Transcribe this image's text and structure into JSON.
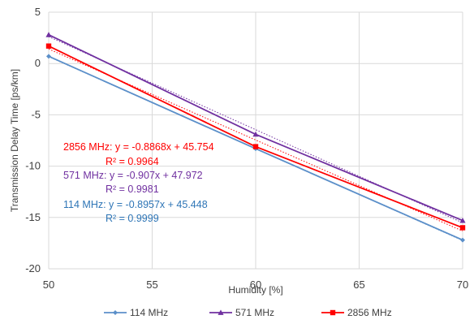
{
  "chart_data": {
    "type": "scatter",
    "xlabel": "Humidity [%]",
    "ylabel": "Transmission Delay Time [ps/km]",
    "xlim": [
      50,
      70
    ],
    "ylim": [
      -20,
      5
    ],
    "xticks": [
      50,
      55,
      60,
      65,
      70
    ],
    "yticks": [
      5,
      0,
      -5,
      -10,
      -15,
      -20
    ],
    "grid": true,
    "legend_position": "bottom",
    "series": [
      {
        "name": "114 MHz",
        "color": "#5b8fc9",
        "marker": "diamond",
        "x": [
          50,
          60,
          70
        ],
        "y": [
          0.7,
          -8.3,
          -17.2
        ],
        "trend": {
          "slope": -0.8957,
          "intercept": 45.448
        },
        "equation": "114 MHz: y = -0.8957x + 45.448",
        "r2": "R² = 0.9999",
        "eq_color": "#2e75b6"
      },
      {
        "name": "571 MHz",
        "color": "#7030a0",
        "marker": "triangle",
        "x": [
          50,
          60,
          70
        ],
        "y": [
          2.8,
          -6.9,
          -15.3
        ],
        "trend": {
          "slope": -0.907,
          "intercept": 47.972
        },
        "equation": "571 MHz: y = -0.907x + 47.972",
        "r2": "R² = 0.9981",
        "eq_color": "#7030a0"
      },
      {
        "name": "2856 MHz",
        "color": "#ff0000",
        "marker": "square",
        "x": [
          50,
          60,
          70
        ],
        "y": [
          1.7,
          -8.1,
          -16.0
        ],
        "trend": {
          "slope": -0.8868,
          "intercept": 45.754
        },
        "equation": "2856 MHz: y = -0.8868x + 45.754",
        "r2": "R² = 0.9964",
        "eq_color": "#ff0000"
      }
    ]
  }
}
